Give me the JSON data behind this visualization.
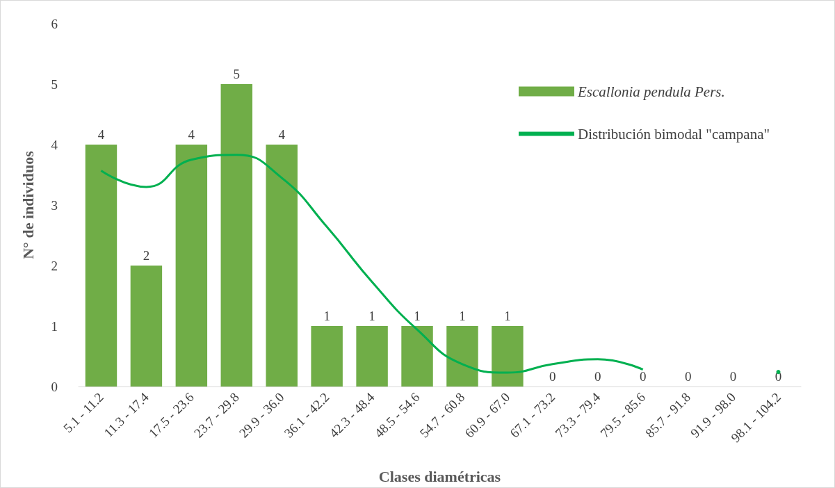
{
  "chart_data": {
    "type": "bar",
    "xlabel": "Clases diamétricas",
    "ylabel": "N° de individuos",
    "categories": [
      "5.1 - 11.2",
      "11.3 - 17.4",
      "17.5 - 23.6",
      "23.7 - 29.8",
      "29.9 - 36.0",
      "36.1 - 42.2",
      "42.3 - 48.4",
      "48.5 - 54.6",
      "54.7 - 60.8",
      "60.9 - 67.0",
      "67.1 - 73.2",
      "73.3 - 79.4",
      "79.5 - 85.6",
      "85.7 - 91.8",
      "91.9 - 98.0",
      "98.1 - 104.2"
    ],
    "series": [
      {
        "name": "Escallonia pendula Pers.",
        "color": "#70ad47",
        "data_labels": true,
        "values": [
          4,
          2,
          4,
          5,
          4,
          1,
          1,
          1,
          1,
          1,
          0,
          0,
          0,
          0,
          0,
          0
        ]
      },
      {
        "name": "Distribución bimodal \"campana\"",
        "type": "line",
        "color": "#00b050",
        "marker": "none",
        "values": [
          3.57,
          3.3,
          3.75,
          3.83,
          3.45,
          2.64,
          1.73,
          0.94,
          0.37,
          0.23,
          0.37,
          0.45,
          0.28,
          null,
          null,
          0.24
        ]
      }
    ],
    "ylim": [
      0,
      6
    ],
    "yticks": [
      0,
      1,
      2,
      3,
      4,
      5,
      6
    ],
    "grid": false,
    "legend": "top right"
  }
}
